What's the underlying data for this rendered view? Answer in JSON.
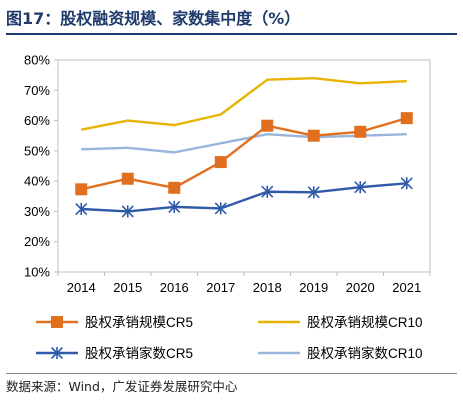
{
  "figure": {
    "title": "图17：股权融资规模、家数集中度（%）",
    "source": "数据来源：Wind，广发证券发展研究中心"
  },
  "chart_data": {
    "type": "line",
    "x": [
      "2014",
      "2015",
      "2016",
      "2017",
      "2018",
      "2019",
      "2020",
      "2021"
    ],
    "ylim": [
      10,
      80
    ],
    "yticks": [
      "10%",
      "20%",
      "30%",
      "40%",
      "50%",
      "60%",
      "70%",
      "80%"
    ],
    "ytick_values": [
      10,
      20,
      30,
      40,
      50,
      60,
      70,
      80
    ],
    "legend_position": "bottom",
    "series": [
      {
        "name": "股权承销规模CR5",
        "color": "#e07020",
        "marker": "square",
        "values": [
          37.3,
          40.8,
          37.8,
          46.3,
          58.3,
          55.0,
          56.3,
          60.8
        ]
      },
      {
        "name": "股权承销规模CR10",
        "color": "#e8b400",
        "marker": "none",
        "values": [
          57.0,
          60.0,
          58.5,
          62.0,
          73.5,
          74.0,
          72.3,
          73.0
        ]
      },
      {
        "name": "股权承销家数CR5",
        "color": "#2e5aa8",
        "marker": "asterisk",
        "values": [
          30.8,
          30.0,
          31.5,
          31.0,
          36.5,
          36.3,
          38.0,
          39.3
        ]
      },
      {
        "name": "股权承销家数CR10",
        "color": "#9ab5dd",
        "marker": "none",
        "values": [
          50.5,
          51.0,
          49.5,
          52.5,
          55.5,
          54.5,
          55.0,
          55.5
        ]
      }
    ]
  }
}
